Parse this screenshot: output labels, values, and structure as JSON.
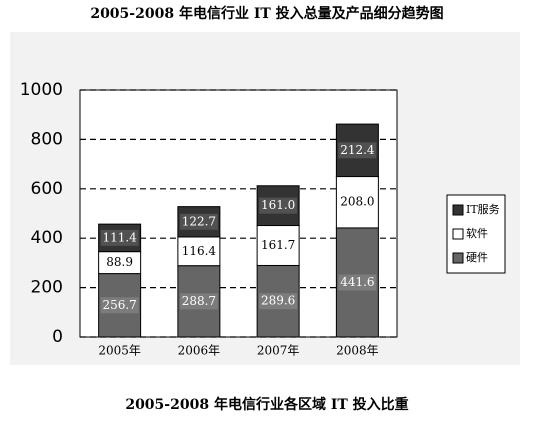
{
  "chart_data": {
    "type": "stacked-bar",
    "title": "2005-2008 年电信行业 IT 投入总量及产品细分趋势图",
    "caption": "2005-2008 年电信行业各区域 IT 投入比重",
    "categories": [
      "2005年",
      "2006年",
      "2007年",
      "2008年"
    ],
    "series": [
      {
        "name": "硬件",
        "color": "#666666",
        "values": [
          256.7,
          288.7,
          289.6,
          441.6
        ],
        "value_labels": [
          "256.7",
          "288.7",
          "289.6",
          "441.6"
        ]
      },
      {
        "name": "软件",
        "color": "#ffffff",
        "values": [
          88.9,
          116.4,
          161.7,
          208.0
        ],
        "value_labels": [
          "88.9",
          "116.4",
          "161.7",
          "208.0"
        ]
      },
      {
        "name": "IT服务",
        "color": "#333333",
        "values": [
          111.4,
          122.7,
          161.0,
          212.4
        ],
        "value_labels": [
          "111.4",
          "122.7",
          "161.0",
          "212.4"
        ]
      }
    ],
    "ylim": [
      0,
      1000
    ],
    "yticks": [
      0,
      200,
      400,
      600,
      800,
      1000
    ],
    "grid": true
  }
}
